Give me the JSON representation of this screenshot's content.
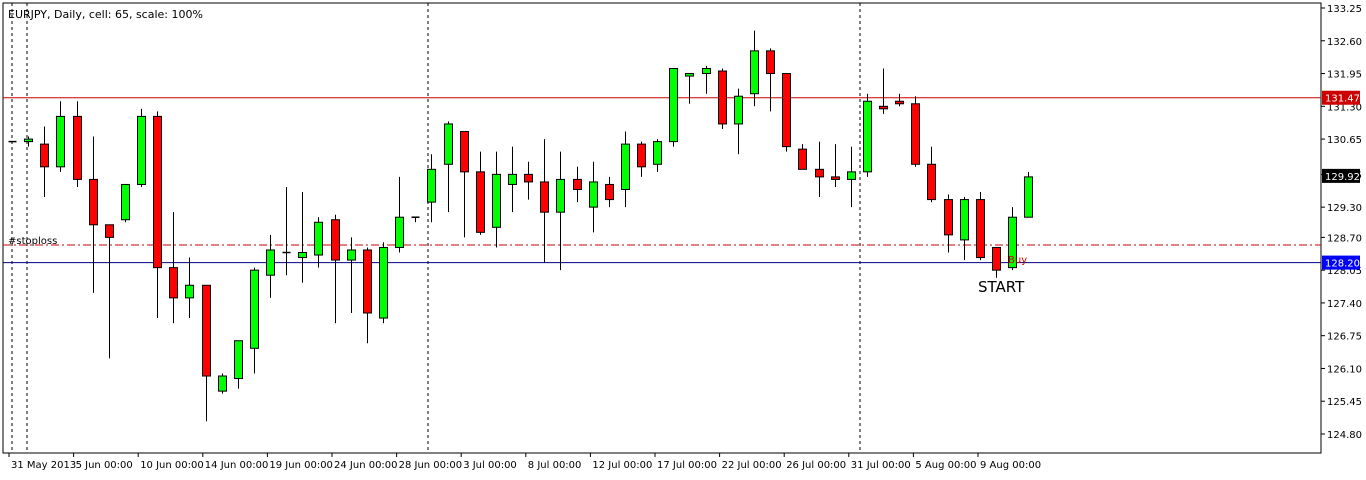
{
  "header": {
    "title": "EURJPY, Daily, cell: 65, scale: 100%"
  },
  "labels": {
    "stoploss": "#stoploss",
    "buy": "Buy",
    "start": "START"
  },
  "price_tags": {
    "level_high": "131.47",
    "current": "129.92",
    "level_low": "128.20"
  },
  "colors": {
    "bull": "#00ff00",
    "bear": "#ff0000",
    "resistance_line": "#cc0000",
    "support_line": "#000080",
    "stoploss_line": "#cc0000",
    "current_tag_bg": "#000000",
    "level_high_tag_bg": "#cc0000",
    "level_low_tag_bg": "#0000ff"
  },
  "chart_data": {
    "type": "candlestick",
    "symbol": "EURJPY",
    "timeframe": "Daily",
    "ylim": [
      124.5,
      133.3
    ],
    "y_ticks": [
      "133.25",
      "132.60",
      "131.95",
      "131.30",
      "130.65",
      "129.95",
      "129.30",
      "128.70",
      "128.05",
      "127.40",
      "126.75",
      "126.10",
      "125.45",
      "124.80"
    ],
    "x_ticks": [
      "31 May 2013",
      "5 Jun 00:00",
      "10 Jun 00:00",
      "14 Jun 00:00",
      "19 Jun 00:00",
      "24 Jun 00:00",
      "28 Jun 00:00",
      "3 Jul 00:00",
      "8 Jul 00:00",
      "12 Jul 00:00",
      "17 Jul 00:00",
      "22 Jul 00:00",
      "26 Jul 00:00",
      "31 Jul 00:00",
      "5 Aug 00:00",
      "9 Aug 00:00"
    ],
    "horizontal_levels": {
      "resistance": 131.47,
      "support": 128.2,
      "stoploss": 128.55
    },
    "candles": [
      {
        "o": 130.6,
        "h": 130.6,
        "l": 130.6,
        "c": 130.6
      },
      {
        "o": 130.6,
        "h": 130.7,
        "l": 130.5,
        "c": 130.65
      },
      {
        "o": 130.55,
        "h": 130.9,
        "l": 129.5,
        "c": 130.1
      },
      {
        "o": 130.1,
        "h": 131.4,
        "l": 130.0,
        "c": 131.1
      },
      {
        "o": 131.1,
        "h": 131.4,
        "l": 129.7,
        "c": 129.85
      },
      {
        "o": 129.85,
        "h": 130.7,
        "l": 127.6,
        "c": 128.95
      },
      {
        "o": 128.95,
        "h": 128.95,
        "l": 126.3,
        "c": 128.7
      },
      {
        "o": 129.05,
        "h": 129.75,
        "l": 129.0,
        "c": 129.75
      },
      {
        "o": 129.75,
        "h": 131.25,
        "l": 129.7,
        "c": 131.1
      },
      {
        "o": 131.1,
        "h": 131.2,
        "l": 127.1,
        "c": 128.1
      },
      {
        "o": 128.1,
        "h": 129.2,
        "l": 127.0,
        "c": 127.5
      },
      {
        "o": 127.5,
        "h": 128.3,
        "l": 127.1,
        "c": 127.75
      },
      {
        "o": 127.75,
        "h": 127.75,
        "l": 125.05,
        "c": 125.95
      },
      {
        "o": 125.65,
        "h": 126.0,
        "l": 125.6,
        "c": 125.95
      },
      {
        "o": 125.9,
        "h": 126.6,
        "l": 125.7,
        "c": 126.65
      },
      {
        "o": 126.5,
        "h": 128.1,
        "l": 126.0,
        "c": 128.05
      },
      {
        "o": 127.95,
        "h": 128.75,
        "l": 127.5,
        "c": 128.45
      },
      {
        "o": 128.4,
        "h": 129.7,
        "l": 127.95,
        "c": 128.4
      },
      {
        "o": 128.3,
        "h": 129.6,
        "l": 127.8,
        "c": 128.4
      },
      {
        "o": 128.35,
        "h": 129.1,
        "l": 128.1,
        "c": 129.0
      },
      {
        "o": 129.05,
        "h": 129.15,
        "l": 127.0,
        "c": 128.25
      },
      {
        "o": 128.25,
        "h": 128.7,
        "l": 127.2,
        "c": 128.45
      },
      {
        "o": 128.45,
        "h": 128.5,
        "l": 126.6,
        "c": 127.2
      },
      {
        "o": 127.1,
        "h": 128.6,
        "l": 127.0,
        "c": 128.5
      },
      {
        "o": 128.5,
        "h": 129.9,
        "l": 128.4,
        "c": 129.1
      },
      {
        "o": 129.1,
        "h": 129.1,
        "l": 129.0,
        "c": 129.1
      },
      {
        "o": 129.4,
        "h": 130.35,
        "l": 129.0,
        "c": 130.05
      },
      {
        "o": 130.15,
        "h": 131.0,
        "l": 129.2,
        "c": 130.95
      },
      {
        "o": 130.8,
        "h": 130.8,
        "l": 128.7,
        "c": 130.0
      },
      {
        "o": 130.0,
        "h": 130.4,
        "l": 128.75,
        "c": 128.8
      },
      {
        "o": 128.9,
        "h": 130.4,
        "l": 128.5,
        "c": 129.95
      },
      {
        "o": 129.75,
        "h": 130.5,
        "l": 129.2,
        "c": 129.95
      },
      {
        "o": 129.95,
        "h": 130.2,
        "l": 129.45,
        "c": 129.8
      },
      {
        "o": 129.8,
        "h": 130.65,
        "l": 128.2,
        "c": 129.2
      },
      {
        "o": 129.2,
        "h": 130.4,
        "l": 128.05,
        "c": 129.85
      },
      {
        "o": 129.85,
        "h": 130.1,
        "l": 129.4,
        "c": 129.65
      },
      {
        "o": 129.3,
        "h": 130.2,
        "l": 128.8,
        "c": 129.8
      },
      {
        "o": 129.75,
        "h": 129.9,
        "l": 129.3,
        "c": 129.45
      },
      {
        "o": 129.65,
        "h": 130.8,
        "l": 129.3,
        "c": 130.55
      },
      {
        "o": 130.55,
        "h": 130.6,
        "l": 129.9,
        "c": 130.1
      },
      {
        "o": 130.15,
        "h": 130.65,
        "l": 130.0,
        "c": 130.6
      },
      {
        "o": 130.6,
        "h": 132.05,
        "l": 130.5,
        "c": 132.05
      },
      {
        "o": 131.9,
        "h": 131.95,
        "l": 131.35,
        "c": 131.95
      },
      {
        "o": 131.95,
        "h": 132.1,
        "l": 131.55,
        "c": 132.05
      },
      {
        "o": 132.0,
        "h": 132.05,
        "l": 130.85,
        "c": 130.95
      },
      {
        "o": 130.95,
        "h": 131.65,
        "l": 130.35,
        "c": 131.5
      },
      {
        "o": 131.55,
        "h": 132.8,
        "l": 131.3,
        "c": 132.4
      },
      {
        "o": 132.4,
        "h": 132.45,
        "l": 131.2,
        "c": 131.95
      },
      {
        "o": 131.95,
        "h": 131.95,
        "l": 130.4,
        "c": 130.5
      },
      {
        "o": 130.45,
        "h": 130.55,
        "l": 130.05,
        "c": 130.05
      },
      {
        "o": 130.05,
        "h": 130.6,
        "l": 129.5,
        "c": 129.9
      },
      {
        "o": 129.9,
        "h": 130.55,
        "l": 129.7,
        "c": 129.85
      },
      {
        "o": 129.85,
        "h": 130.5,
        "l": 129.3,
        "c": 130.0
      },
      {
        "o": 130.0,
        "h": 131.55,
        "l": 129.9,
        "c": 131.4
      },
      {
        "o": 131.3,
        "h": 132.05,
        "l": 131.15,
        "c": 131.25
      },
      {
        "o": 131.4,
        "h": 131.55,
        "l": 131.3,
        "c": 131.35
      },
      {
        "o": 131.35,
        "h": 131.5,
        "l": 130.1,
        "c": 130.15
      },
      {
        "o": 130.15,
        "h": 130.5,
        "l": 129.4,
        "c": 129.45
      },
      {
        "o": 129.45,
        "h": 129.55,
        "l": 128.4,
        "c": 128.75
      },
      {
        "o": 128.65,
        "h": 129.5,
        "l": 128.25,
        "c": 129.45
      },
      {
        "o": 129.45,
        "h": 129.6,
        "l": 128.25,
        "c": 128.3
      },
      {
        "o": 128.5,
        "h": 128.5,
        "l": 127.9,
        "c": 128.05
      },
      {
        "o": 128.1,
        "h": 129.3,
        "l": 128.05,
        "c": 129.1
      },
      {
        "o": 129.1,
        "h": 130.0,
        "l": 129.1,
        "c": 129.9
      }
    ]
  }
}
